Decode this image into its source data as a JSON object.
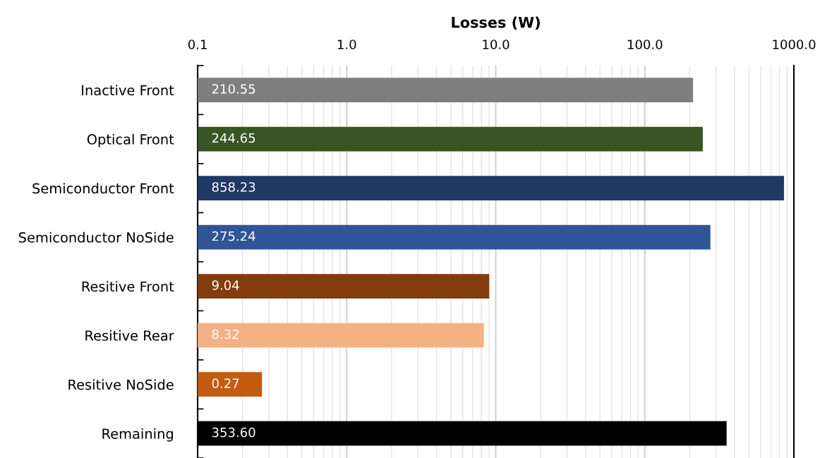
{
  "chart_data": {
    "type": "bar",
    "orientation": "horizontal",
    "xlabel": "Losses (W)",
    "categories": [
      "Inactive Front",
      "Optical Front",
      "Semiconductor Front",
      "Semiconductor NoSide",
      "Resitive Front",
      "Resitive Rear",
      "Resitive NoSide",
      "Remaining"
    ],
    "values": [
      210.55,
      244.65,
      858.23,
      275.24,
      9.04,
      8.32,
      0.27,
      353.6
    ],
    "value_labels": [
      "210.55",
      "244.65",
      "858.23",
      "275.24",
      "9.04",
      "8.32",
      "0.27",
      "353.60"
    ],
    "colors": [
      "#7f7f7f",
      "#375623",
      "#203864",
      "#2f5597",
      "#843c0c",
      "#f4b183",
      "#c55a11",
      "#000000"
    ],
    "log": "x",
    "xlim": [
      0.1,
      1000
    ],
    "xticks": [
      {
        "value": 0.1,
        "label": "0.1"
      },
      {
        "value": 1,
        "label": "1.0"
      },
      {
        "value": 10,
        "label": "10.0"
      },
      {
        "value": 100,
        "label": "100.0"
      },
      {
        "value": 1000,
        "label": "1000.0"
      }
    ],
    "grid": "x"
  }
}
